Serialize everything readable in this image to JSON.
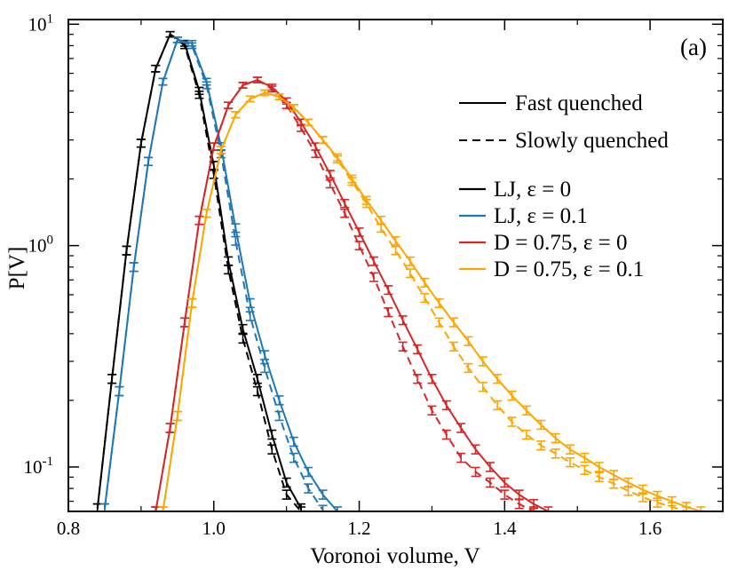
{
  "chart_data": {
    "type": "line",
    "title": "",
    "panel_label": "(a)",
    "xlabel": "Voronoi volume, V",
    "ylabel": "P[V]",
    "xlim": [
      0.8,
      1.7
    ],
    "ylim": [
      0.063,
      10.5
    ],
    "yscale": "log",
    "grid": false,
    "legend_position": "top-right",
    "x_ticks": [
      {
        "value": 0.8,
        "label": "0.8"
      },
      {
        "value": 1.0,
        "label": "1.0"
      },
      {
        "value": 1.2,
        "label": "1.2"
      },
      {
        "value": 1.4,
        "label": "1.4"
      },
      {
        "value": 1.6,
        "label": "1.6"
      }
    ],
    "y_ticks": [
      {
        "value": 0.1,
        "base": "10",
        "exp": "-1"
      },
      {
        "value": 1,
        "base": "10",
        "exp": "0"
      },
      {
        "value": 10,
        "base": "10",
        "exp": "1"
      }
    ],
    "style_legend": [
      {
        "style": "solid",
        "label": "Fast quenched"
      },
      {
        "style": "dashed",
        "label": "Slowly quenched"
      }
    ],
    "series": [
      {
        "name": "LJ, ε = 0",
        "color": "#000000",
        "peak": 9.0,
        "fast": {
          "x": [
            0.84,
            0.86,
            0.88,
            0.9,
            0.92,
            0.94,
            0.96,
            0.98,
            1.0,
            1.02,
            1.04,
            1.06,
            1.08,
            1.1,
            1.12
          ],
          "y": [
            0.065,
            0.25,
            0.95,
            2.9,
            6.3,
            9.0,
            8.2,
            5.0,
            2.3,
            0.85,
            0.42,
            0.25,
            0.14,
            0.085,
            0.065
          ]
        },
        "slow": {
          "x": [
            0.84,
            0.86,
            0.88,
            0.9,
            0.92,
            0.94,
            0.96,
            0.98,
            1.0,
            1.02,
            1.04,
            1.06,
            1.08,
            1.1,
            1.12
          ],
          "y": [
            0.065,
            0.25,
            0.95,
            2.9,
            6.3,
            9.0,
            8.0,
            4.8,
            2.1,
            0.78,
            0.38,
            0.22,
            0.12,
            0.075,
            0.063
          ]
        }
      },
      {
        "name": "LJ, ε = 0.1",
        "color": "#1f77b4",
        "peak": 8.5,
        "fast": {
          "x": [
            0.85,
            0.87,
            0.89,
            0.91,
            0.93,
            0.95,
            0.97,
            0.99,
            1.01,
            1.03,
            1.05,
            1.07,
            1.09,
            1.11,
            1.13,
            1.15,
            1.17
          ],
          "y": [
            0.065,
            0.22,
            0.8,
            2.4,
            5.5,
            8.5,
            8.2,
            5.5,
            2.8,
            1.2,
            0.55,
            0.32,
            0.2,
            0.13,
            0.095,
            0.075,
            0.063
          ]
        },
        "slow": {
          "x": [
            0.85,
            0.87,
            0.89,
            0.91,
            0.93,
            0.95,
            0.97,
            0.99,
            1.01,
            1.03,
            1.05,
            1.07,
            1.09,
            1.11,
            1.13,
            1.15
          ],
          "y": [
            0.065,
            0.22,
            0.8,
            2.4,
            5.5,
            8.5,
            8.0,
            5.3,
            2.6,
            1.05,
            0.48,
            0.28,
            0.17,
            0.11,
            0.08,
            0.064
          ]
        }
      },
      {
        "name": "D = 0.75, ε = 0",
        "color": "#d62728",
        "peak": 5.6,
        "fast": {
          "x": [
            0.92,
            0.94,
            0.96,
            0.98,
            1.0,
            1.02,
            1.04,
            1.06,
            1.08,
            1.1,
            1.12,
            1.14,
            1.16,
            1.18,
            1.2,
            1.22,
            1.24,
            1.26,
            1.28,
            1.3,
            1.32,
            1.34,
            1.36,
            1.38,
            1.4,
            1.42,
            1.44,
            1.46
          ],
          "y": [
            0.063,
            0.15,
            0.45,
            1.3,
            2.8,
            4.3,
            5.3,
            5.6,
            5.2,
            4.5,
            3.6,
            2.8,
            2.1,
            1.55,
            1.15,
            0.85,
            0.63,
            0.46,
            0.34,
            0.25,
            0.19,
            0.15,
            0.12,
            0.1,
            0.085,
            0.075,
            0.068,
            0.063
          ]
        },
        "slow": {
          "x": [
            0.92,
            0.94,
            0.96,
            0.98,
            1.0,
            1.02,
            1.04,
            1.06,
            1.08,
            1.1,
            1.12,
            1.14,
            1.16,
            1.18,
            1.2,
            1.22,
            1.24,
            1.26,
            1.28,
            1.3,
            1.32,
            1.34,
            1.36,
            1.38,
            1.4,
            1.42,
            1.44
          ],
          "y": [
            0.063,
            0.15,
            0.45,
            1.3,
            2.8,
            4.3,
            5.3,
            5.6,
            5.1,
            4.3,
            3.4,
            2.6,
            1.9,
            1.4,
            1.0,
            0.72,
            0.5,
            0.35,
            0.25,
            0.18,
            0.14,
            0.11,
            0.095,
            0.085,
            0.075,
            0.068,
            0.063
          ]
        }
      },
      {
        "name": "D = 0.75, ε = 0.1",
        "color": "#ffa500",
        "peak": 4.9,
        "fast": {
          "x": [
            0.93,
            0.95,
            0.97,
            0.99,
            1.01,
            1.03,
            1.05,
            1.07,
            1.09,
            1.11,
            1.13,
            1.15,
            1.17,
            1.19,
            1.21,
            1.23,
            1.25,
            1.27,
            1.29,
            1.31,
            1.33,
            1.35,
            1.37,
            1.39,
            1.41,
            1.43,
            1.45,
            1.47,
            1.49,
            1.51,
            1.53,
            1.55,
            1.57,
            1.59,
            1.61,
            1.63,
            1.65,
            1.67
          ],
          "y": [
            0.063,
            0.17,
            0.55,
            1.4,
            2.7,
            3.9,
            4.6,
            4.9,
            4.7,
            4.2,
            3.6,
            3.0,
            2.5,
            2.0,
            1.6,
            1.3,
            1.05,
            0.85,
            0.68,
            0.55,
            0.45,
            0.37,
            0.3,
            0.25,
            0.21,
            0.18,
            0.155,
            0.135,
            0.12,
            0.11,
            0.1,
            0.092,
            0.085,
            0.079,
            0.074,
            0.07,
            0.066,
            0.063
          ]
        },
        "slow": {
          "x": [
            0.93,
            0.95,
            0.97,
            0.99,
            1.01,
            1.03,
            1.05,
            1.07,
            1.09,
            1.11,
            1.13,
            1.15,
            1.17,
            1.19,
            1.21,
            1.23,
            1.25,
            1.27,
            1.29,
            1.31,
            1.33,
            1.35,
            1.37,
            1.39,
            1.41,
            1.43,
            1.45,
            1.47,
            1.49,
            1.51,
            1.53,
            1.55,
            1.57,
            1.59,
            1.61,
            1.63,
            1.65
          ],
          "y": [
            0.063,
            0.17,
            0.55,
            1.4,
            2.7,
            3.9,
            4.6,
            4.9,
            4.7,
            4.2,
            3.6,
            3.0,
            2.45,
            1.95,
            1.55,
            1.2,
            0.95,
            0.75,
            0.58,
            0.45,
            0.35,
            0.28,
            0.23,
            0.19,
            0.16,
            0.14,
            0.125,
            0.115,
            0.105,
            0.097,
            0.09,
            0.084,
            0.078,
            0.073,
            0.069,
            0.066,
            0.063
          ]
        }
      }
    ]
  }
}
